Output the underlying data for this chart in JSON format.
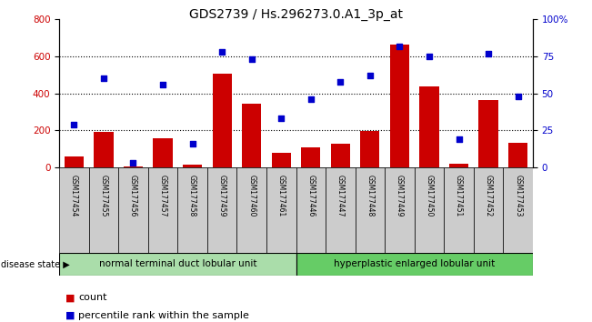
{
  "title": "GDS2739 / Hs.296273.0.A1_3p_at",
  "samples": [
    "GSM177454",
    "GSM177455",
    "GSM177456",
    "GSM177457",
    "GSM177458",
    "GSM177459",
    "GSM177460",
    "GSM177461",
    "GSM177446",
    "GSM177447",
    "GSM177448",
    "GSM177449",
    "GSM177450",
    "GSM177451",
    "GSM177452",
    "GSM177453"
  ],
  "counts": [
    60,
    190,
    5,
    160,
    15,
    505,
    345,
    80,
    110,
    130,
    195,
    665,
    440,
    20,
    365,
    135
  ],
  "percentiles": [
    29,
    60,
    3,
    56,
    16,
    78,
    73,
    33,
    46,
    58,
    62,
    82,
    75,
    19,
    77,
    48
  ],
  "group1_label": "normal terminal duct lobular unit",
  "group2_label": "hyperplastic enlarged lobular unit",
  "disease_state_label": "disease state",
  "ylim_left": [
    0,
    800
  ],
  "ylim_right": [
    0,
    100
  ],
  "yticks_left": [
    0,
    200,
    400,
    600,
    800
  ],
  "yticks_right": [
    0,
    25,
    50,
    75,
    100
  ],
  "ytick_labels_right": [
    "0",
    "25",
    "50",
    "75",
    "100%"
  ],
  "bar_color": "#cc0000",
  "dot_color": "#0000cc",
  "bg_color": "#ffffff",
  "tick_bg_color": "#cccccc",
  "group1_bg": "#aaddaa",
  "group2_bg": "#66cc66",
  "legend_count_label": "count",
  "legend_pct_label": "percentile rank within the sample"
}
